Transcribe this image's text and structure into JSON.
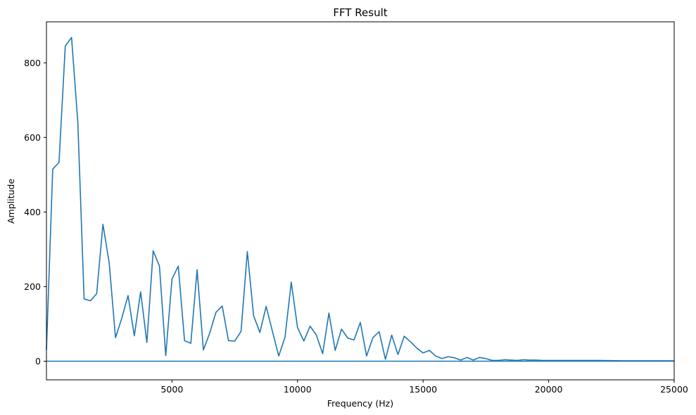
{
  "chart_data": {
    "type": "line",
    "title": "FFT Result",
    "xlabel": "Frequency (Hz)",
    "ylabel": "Amplitude",
    "xlim": [
      0,
      25000
    ],
    "ylim": [
      -50,
      910
    ],
    "xticks": [
      5000,
      10000,
      15000,
      20000,
      25000
    ],
    "yticks": [
      0,
      200,
      400,
      600,
      800
    ],
    "grid": false,
    "legend": "none",
    "color": "#1f77b4",
    "series": [
      {
        "x": [
          0,
          250,
          500,
          750,
          1000,
          1250,
          1500,
          1750,
          2000,
          2250,
          2500,
          2750,
          3000,
          3250,
          3500,
          3750,
          4000,
          4250,
          4500,
          4750,
          5000,
          5250,
          5500,
          5750,
          6000,
          6250,
          6500,
          6750,
          7000,
          7250,
          7500,
          7750,
          8000,
          8250,
          8500,
          8750,
          9000,
          9250,
          9500,
          9750,
          10000,
          10250,
          10500,
          10750,
          11000,
          11250,
          11500,
          11750,
          12000,
          12250,
          12500,
          12750,
          13000,
          13250,
          13500,
          13750,
          14000,
          14250,
          14500,
          14750,
          15000,
          15250,
          15500,
          15750,
          16000,
          16250,
          16500,
          16750,
          17000,
          17250,
          17500,
          17750,
          18000,
          18250,
          18500,
          18750,
          19000,
          19250,
          19500,
          19750,
          20000,
          21000,
          22000,
          23000,
          24000,
          25000
        ],
        "values": [
          30,
          515,
          533,
          845,
          868,
          640,
          167,
          162,
          181,
          367,
          263,
          63,
          115,
          176,
          68,
          186,
          50,
          296,
          255,
          15,
          220,
          255,
          55,
          48,
          245,
          30,
          75,
          131,
          148,
          55,
          54,
          80,
          294,
          122,
          77,
          147,
          80,
          14,
          64,
          212,
          90,
          54,
          94,
          70,
          20,
          129,
          29,
          86,
          62,
          57,
          104,
          14,
          63,
          79,
          5,
          70,
          18,
          67,
          52,
          35,
          22,
          29,
          14,
          7,
          12,
          9,
          3,
          10,
          3,
          10,
          7,
          2,
          2,
          4,
          3,
          2,
          4,
          3,
          3,
          2,
          2,
          2,
          2,
          1,
          1,
          1
        ]
      },
      {
        "x": [
          0,
          25000
        ],
        "values": [
          0,
          0
        ]
      }
    ]
  }
}
